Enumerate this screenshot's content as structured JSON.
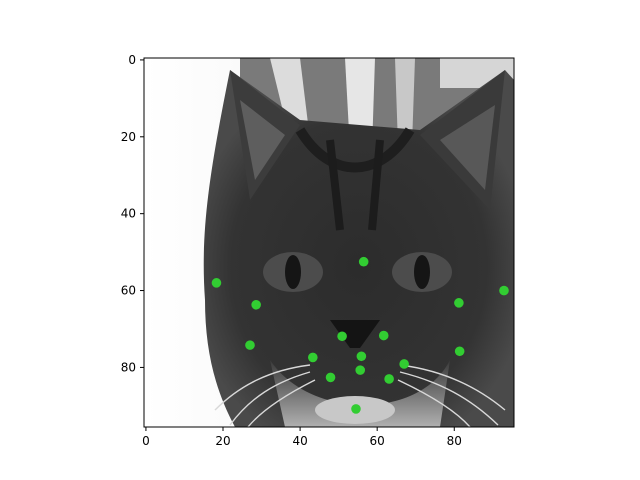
{
  "chart_data": {
    "type": "scatter",
    "background_image": "grayscale-cat-face-photo",
    "marker_color": "#32cd32",
    "axis_color": "#000000",
    "xlim": [
      -0.5,
      95.5
    ],
    "ylim": [
      95.5,
      -0.5
    ],
    "y_inverted": true,
    "grid": false,
    "x_ticks": [
      0,
      20,
      40,
      60,
      80
    ],
    "y_ticks": [
      0,
      20,
      40,
      60,
      80
    ],
    "x_tick_labels": [
      "0",
      "20",
      "40",
      "60",
      "80"
    ],
    "y_tick_labels": [
      "0",
      "20",
      "40",
      "60",
      "80"
    ],
    "points": [
      {
        "x": 56.5,
        "y": 52.5
      },
      {
        "x": 18.3,
        "y": 58.0
      },
      {
        "x": 28.6,
        "y": 63.7
      },
      {
        "x": 81.2,
        "y": 63.2
      },
      {
        "x": 92.9,
        "y": 60.0
      },
      {
        "x": 27.0,
        "y": 74.2
      },
      {
        "x": 50.9,
        "y": 71.9
      },
      {
        "x": 61.7,
        "y": 71.7
      },
      {
        "x": 43.3,
        "y": 77.4
      },
      {
        "x": 55.9,
        "y": 77.1
      },
      {
        "x": 81.4,
        "y": 75.8
      },
      {
        "x": 55.6,
        "y": 80.7
      },
      {
        "x": 67.0,
        "y": 79.1
      },
      {
        "x": 47.9,
        "y": 82.6
      },
      {
        "x": 63.1,
        "y": 83.0
      },
      {
        "x": 54.5,
        "y": 90.8
      }
    ]
  }
}
